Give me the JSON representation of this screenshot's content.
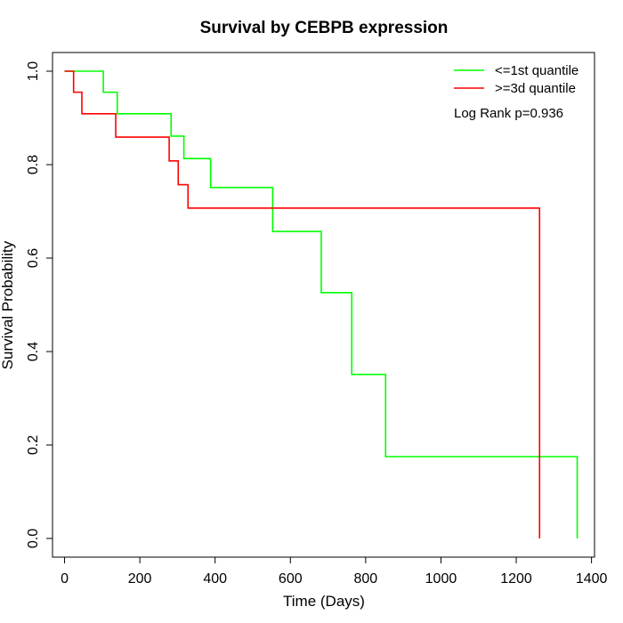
{
  "chart_data": {
    "type": "line",
    "title": "Survival by CEBPB expression",
    "xlabel": "Time (Days)",
    "ylabel": "Survival Probability",
    "xlim": [
      -32,
      1408
    ],
    "ylim": [
      -0.04,
      1.04
    ],
    "x_ticks": [
      0,
      200,
      400,
      600,
      800,
      1000,
      1200,
      1400
    ],
    "y_ticks": [
      0.0,
      0.2,
      0.4,
      0.6,
      0.8,
      1.0
    ],
    "x_tick_labels": [
      "0",
      "200",
      "400",
      "600",
      "800",
      "1000",
      "1200",
      "1400"
    ],
    "y_tick_labels": [
      "0.0",
      "0.2",
      "0.4",
      "0.6",
      "0.8",
      "1.0"
    ],
    "grid": false,
    "legend_position": "top-right",
    "annotation": "Log Rank p=0.936",
    "series": [
      {
        "name": "<=1st quantile",
        "color": "#00ff00",
        "step_points": [
          [
            0,
            1.0
          ],
          [
            103,
            1.0
          ],
          [
            103,
            0.955
          ],
          [
            140,
            0.955
          ],
          [
            140,
            0.909
          ],
          [
            283,
            0.909
          ],
          [
            283,
            0.861
          ],
          [
            317,
            0.861
          ],
          [
            317,
            0.813
          ],
          [
            388,
            0.813
          ],
          [
            388,
            0.751
          ],
          [
            553,
            0.751
          ],
          [
            553,
            0.657
          ],
          [
            682,
            0.657
          ],
          [
            682,
            0.526
          ],
          [
            763,
            0.526
          ],
          [
            763,
            0.351
          ],
          [
            853,
            0.351
          ],
          [
            853,
            0.175
          ],
          [
            1362,
            0.175
          ],
          [
            1362,
            0.0
          ]
        ]
      },
      {
        "name": ">=3d quantile",
        "color": "#ff0000",
        "step_points": [
          [
            0,
            1.0
          ],
          [
            24,
            1.0
          ],
          [
            24,
            0.955
          ],
          [
            46,
            0.955
          ],
          [
            46,
            0.909
          ],
          [
            136,
            0.909
          ],
          [
            136,
            0.859
          ],
          [
            278,
            0.859
          ],
          [
            278,
            0.808
          ],
          [
            302,
            0.808
          ],
          [
            302,
            0.757
          ],
          [
            328,
            0.757
          ],
          [
            328,
            0.707
          ],
          [
            1262,
            0.707
          ],
          [
            1262,
            0.0
          ]
        ]
      }
    ]
  }
}
